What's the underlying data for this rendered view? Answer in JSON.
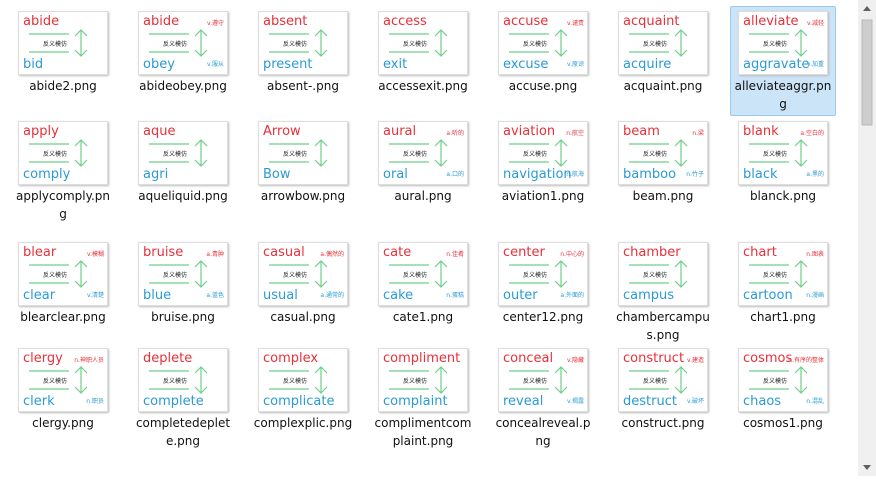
{
  "thumbnail_label": "反义模仿",
  "files": [
    {
      "name": "abide2.png",
      "top": "abide",
      "bottom": "bid"
    },
    {
      "name": "abideobey.png",
      "top": "abide",
      "bottom": "obey",
      "top_note": "v.遵守",
      "bottom_note": "v.服从"
    },
    {
      "name": "absent-.png",
      "top": "absent",
      "bottom": "present"
    },
    {
      "name": "accessexit.png",
      "top": "access",
      "bottom": "exit"
    },
    {
      "name": "accuse.png",
      "top": "accuse",
      "bottom": "excuse",
      "top_note": "v.谴责",
      "bottom_note": "v.原谅"
    },
    {
      "name": "acquaint.png",
      "top": "acquaint",
      "bottom": "acquire"
    },
    {
      "name": "alleviateaggr.png",
      "top": "alleviate",
      "bottom": "aggravate",
      "top_note": "v.减轻",
      "bottom_note": "v.加重",
      "selected": true
    },
    {
      "name": "applycomply.png",
      "top": "apply",
      "bottom": "comply"
    },
    {
      "name": "aqueliquid.png",
      "top": "aque",
      "bottom": "agri"
    },
    {
      "name": "arrowbow.png",
      "top": "Arrow",
      "bottom": "Bow"
    },
    {
      "name": "aural.png",
      "top": "aural",
      "bottom": "oral",
      "top_note": "a.听的",
      "bottom_note": "a.口的"
    },
    {
      "name": "aviation1.png",
      "top": "aviation",
      "bottom": "navigation",
      "top_note": "n.航空",
      "bottom_note": "n.航海"
    },
    {
      "name": "beam.png",
      "top": "beam",
      "bottom": "bamboo",
      "top_note": "n.梁",
      "bottom_note": "n.竹子"
    },
    {
      "name": "blanck.png",
      "top": "blank",
      "bottom": "black",
      "top_note": "a.空白的",
      "bottom_note": "a.黑的"
    },
    {
      "name": "blearclear.png",
      "top": "blear",
      "bottom": "clear",
      "top_note": "v.模糊",
      "bottom_note": "v.清楚"
    },
    {
      "name": "bruise.png",
      "top": "bruise",
      "bottom": "blue",
      "top_note": "a.青肿",
      "bottom_note": "a.蓝色"
    },
    {
      "name": "casual.png",
      "top": "casual",
      "bottom": "usual",
      "top_note": "a.偶然的",
      "bottom_note": "a.通常的"
    },
    {
      "name": "cate1.png",
      "top": "cate",
      "bottom": "cake",
      "top_note": "n.佳肴",
      "bottom_note": "n.蛋糕"
    },
    {
      "name": "center12.png",
      "top": "center",
      "bottom": "outer",
      "top_note": "n.中心的",
      "bottom_note": "a.外面的"
    },
    {
      "name": "chambercampus.png",
      "top": "chamber",
      "bottom": "campus"
    },
    {
      "name": "chart1.png",
      "top": "chart",
      "bottom": "cartoon",
      "top_note": "n.图表",
      "bottom_note": "n.漫画"
    },
    {
      "name": "clergy.png",
      "top": "clergy",
      "bottom": "clerk",
      "top_note": "n.神职人员",
      "bottom_note": "n.职员"
    },
    {
      "name": "completedeplete.png",
      "top": "deplete",
      "bottom": "complete"
    },
    {
      "name": "complexplic.png",
      "top": "complex",
      "bottom": "complicate"
    },
    {
      "name": "complimentcomplaint.png",
      "top": "compliment",
      "bottom": "complaint"
    },
    {
      "name": "concealreveal.png",
      "top": "conceal",
      "bottom": "reveal",
      "top_note": "v.隐藏",
      "bottom_note": "v.揭露"
    },
    {
      "name": "construct.png",
      "top": "construct",
      "bottom": "destruct",
      "top_note": "v.建造",
      "bottom_note": "v.破坏"
    },
    {
      "name": "cosmos1.png",
      "top": "cosmos",
      "bottom": "chaos",
      "top_note": "n.有序的整体",
      "bottom_note": "n.混乱"
    }
  ]
}
